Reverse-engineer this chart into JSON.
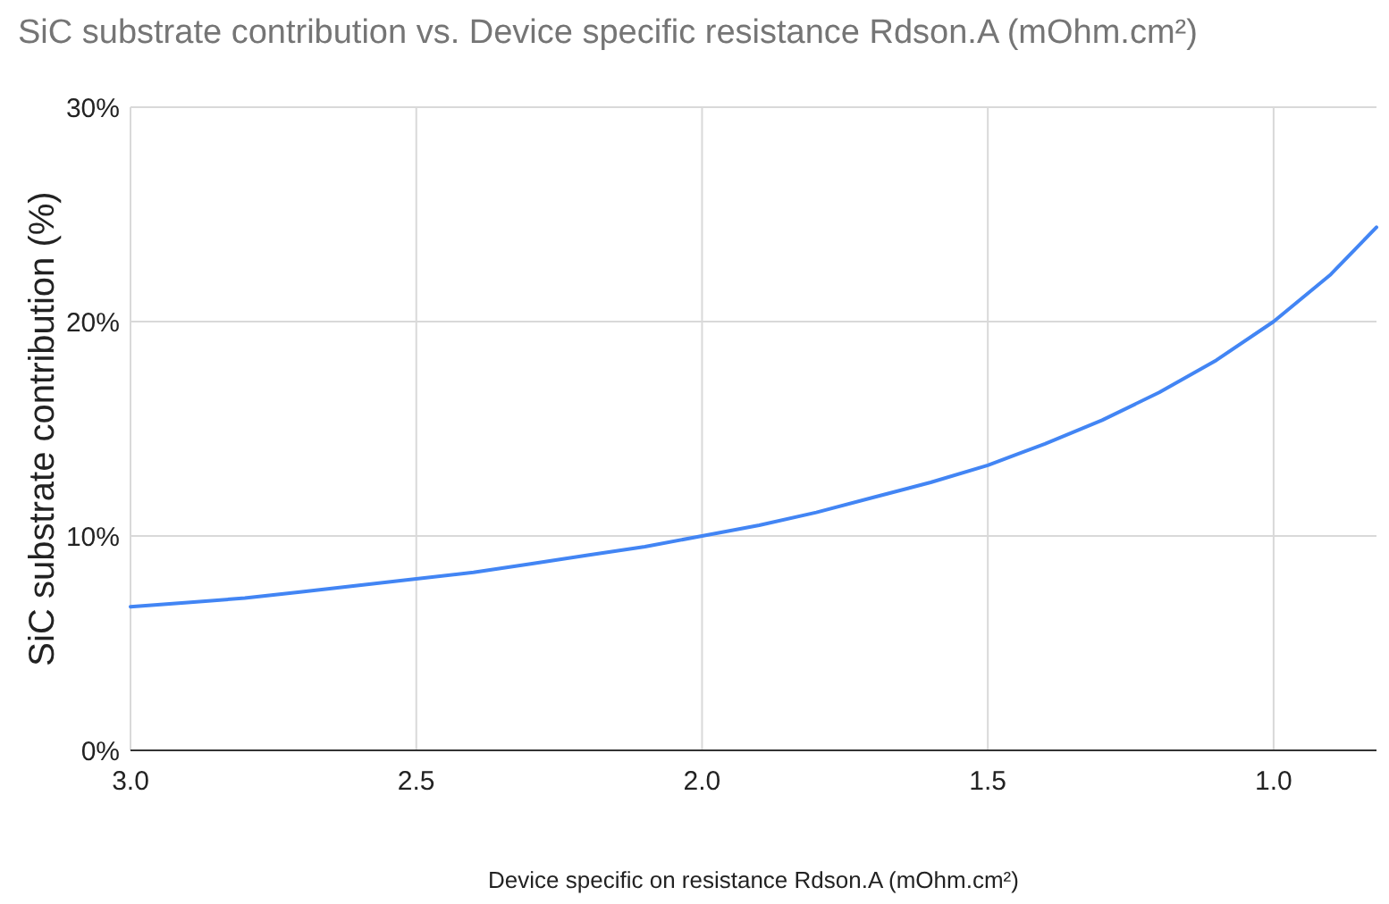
{
  "chart_data": {
    "type": "line",
    "title": "SiC substrate contribution vs. Device specific resistance Rdson.A (mOhm.cm²)",
    "xlabel": "Device specific on resistance Rdson.A (mOhm.cm²)",
    "ylabel": "SiC substrate contribution (%)",
    "x": [
      3.0,
      2.9,
      2.8,
      2.7,
      2.6,
      2.5,
      2.4,
      2.3,
      2.2,
      2.1,
      2.0,
      1.9,
      1.8,
      1.7,
      1.6,
      1.5,
      1.4,
      1.3,
      1.2,
      1.1,
      1.0,
      0.9,
      0.82
    ],
    "series": [
      {
        "color": "#4285f4",
        "values": [
          6.7,
          6.9,
          7.1,
          7.4,
          7.7,
          8.0,
          8.3,
          8.7,
          9.1,
          9.5,
          10.0,
          10.5,
          11.1,
          11.8,
          12.5,
          13.3,
          14.3,
          15.4,
          16.7,
          18.2,
          20.0,
          22.2,
          24.4
        ]
      }
    ],
    "xlim": [
      3.0,
      0.82
    ],
    "xticks": [
      {
        "value": 3,
        "label": "3.0"
      },
      {
        "value": 2.5,
        "label": "2.5"
      },
      {
        "value": 2,
        "label": "2.0"
      },
      {
        "value": 1.5,
        "label": "1.5"
      },
      {
        "value": 1,
        "label": "1.0"
      }
    ],
    "ylim": [
      0,
      30
    ],
    "yticks": [
      {
        "value": 0,
        "label": "0%"
      },
      {
        "value": 10,
        "label": "10%"
      },
      {
        "value": 20,
        "label": "20%"
      },
      {
        "value": 30,
        "label": "30%"
      }
    ],
    "grid": true,
    "marker": "none",
    "line_style": "solid"
  }
}
